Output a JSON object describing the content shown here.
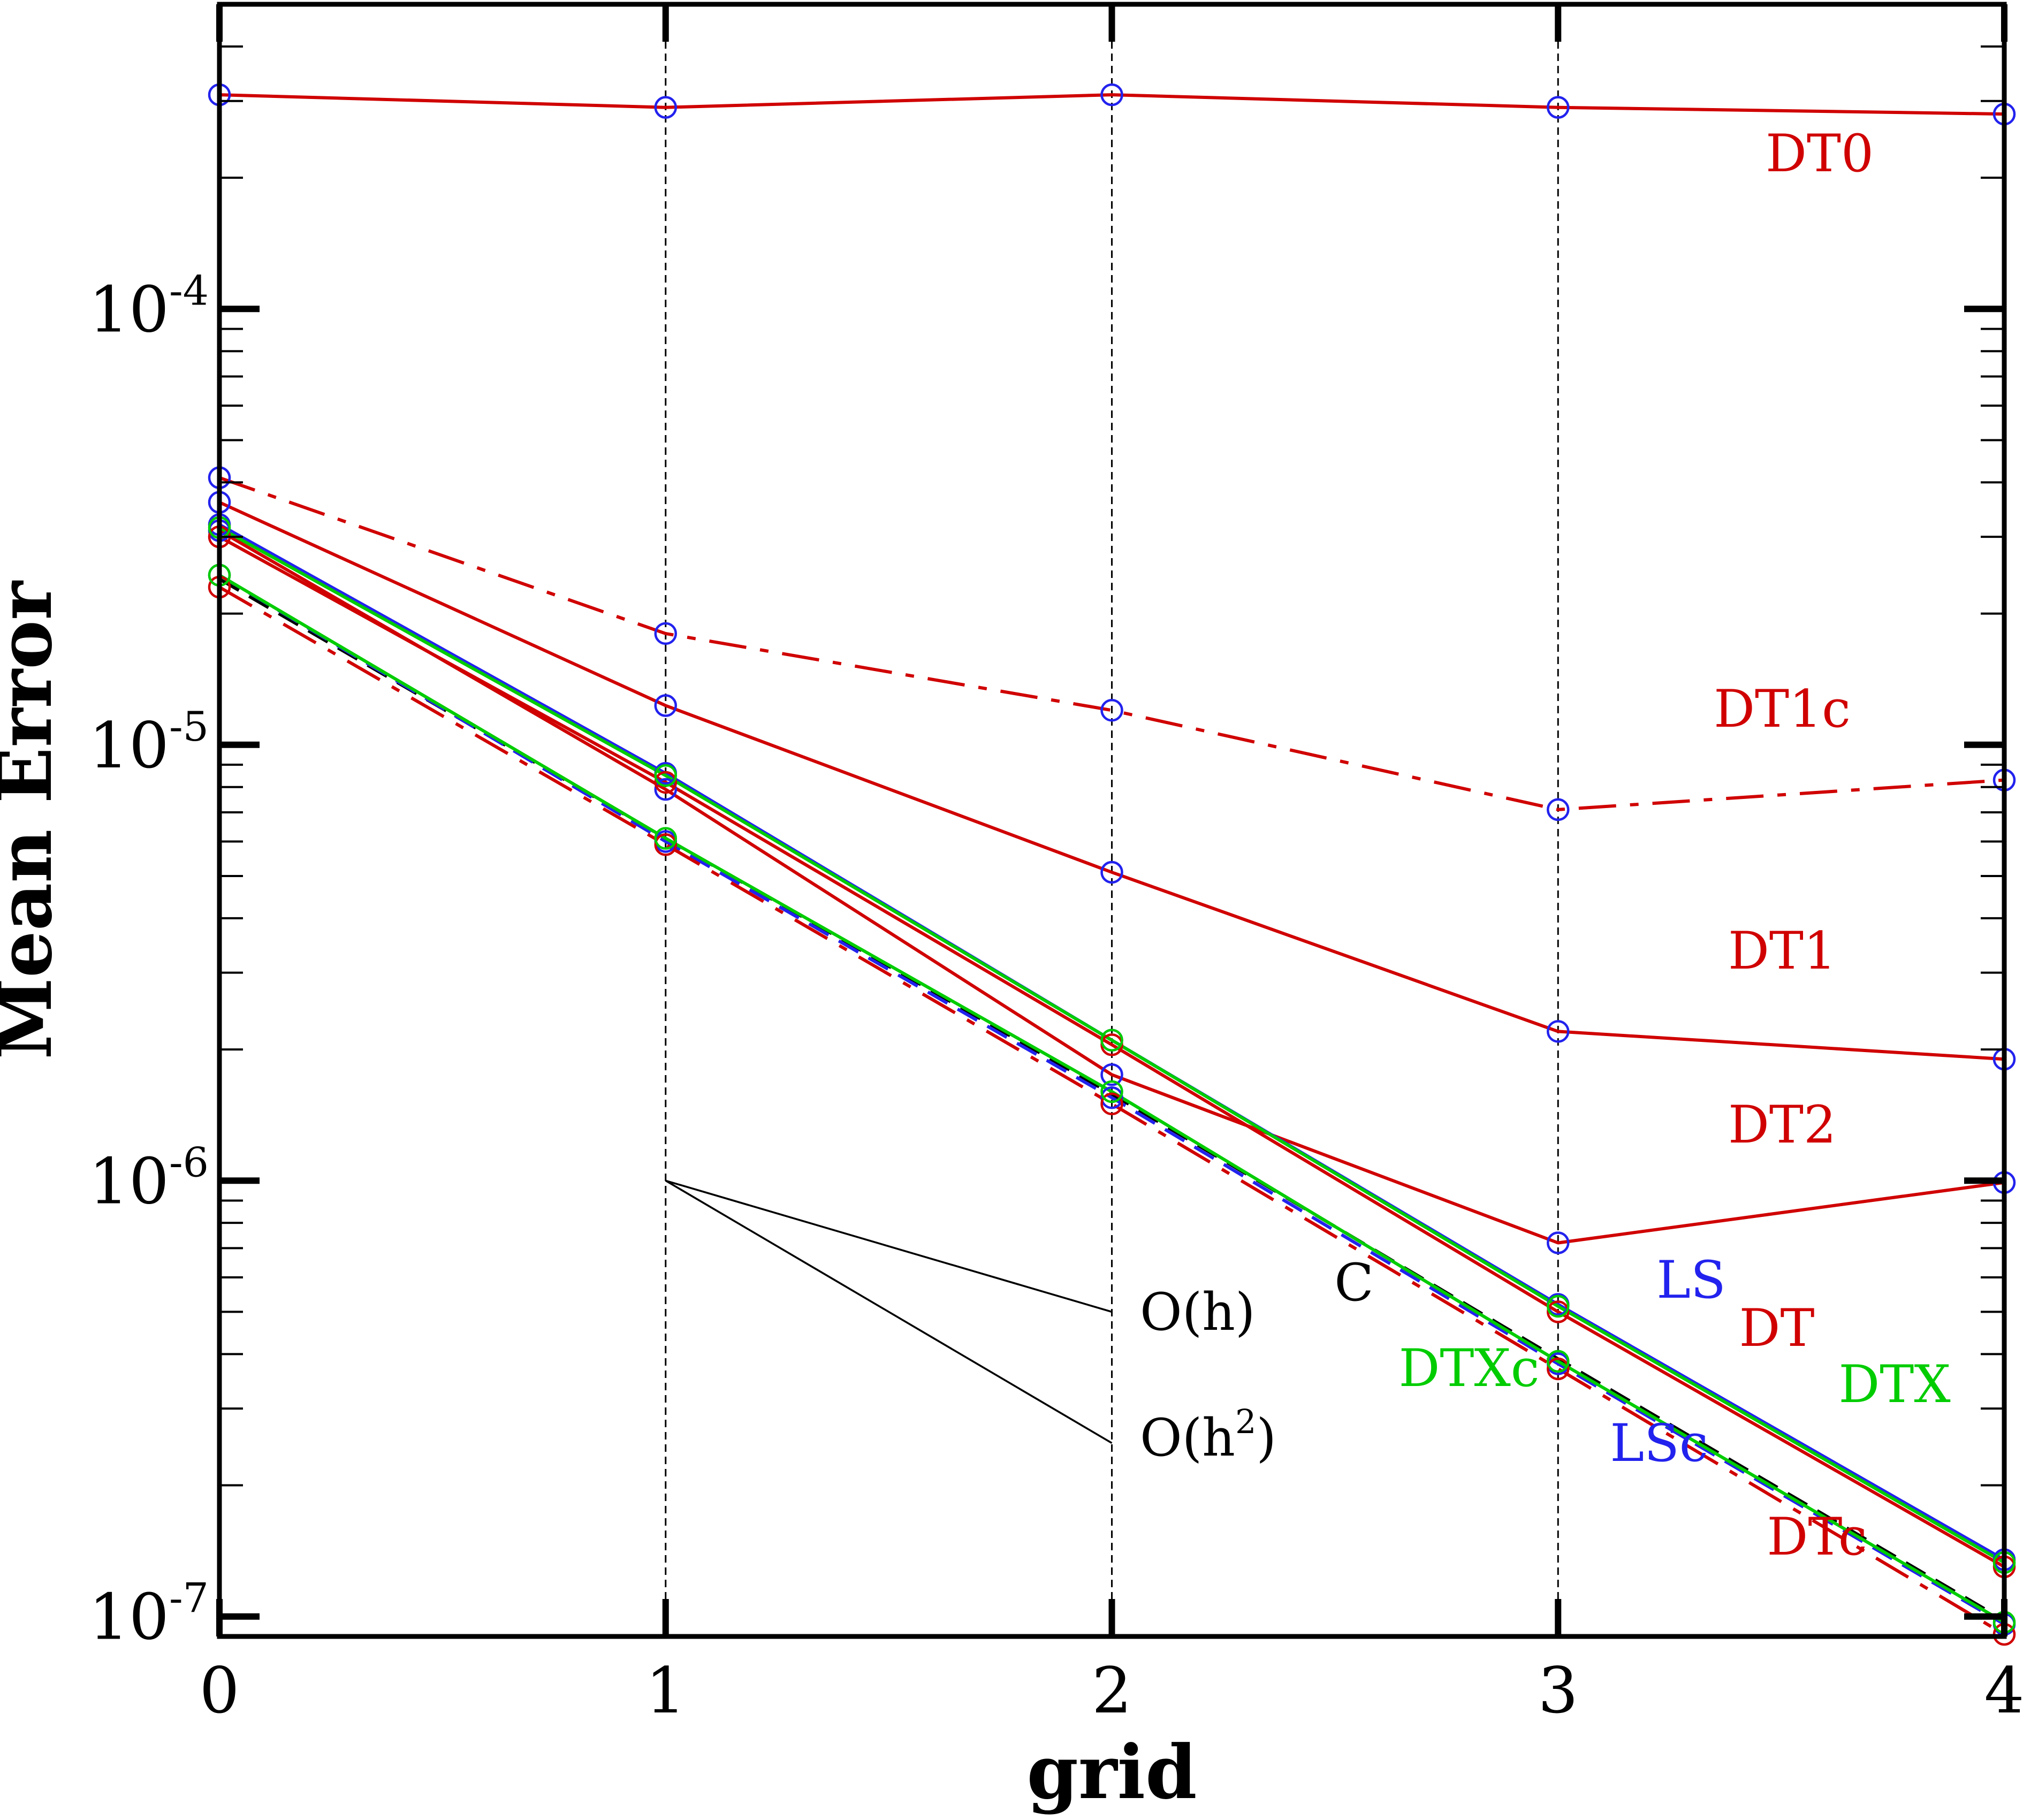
{
  "chart_data": {
    "type": "line",
    "title": "",
    "xlabel": "grid",
    "ylabel": "Mean Error",
    "yscale": "log",
    "xlim": [
      0,
      4
    ],
    "ylim": [
      9e-08,
      0.0005
    ],
    "grid": "vertical dashed lines at x = 1, 2, 3",
    "x": [
      0,
      1,
      2,
      3,
      4
    ],
    "x_tick_labels": [
      "0",
      "1",
      "2",
      "3",
      "4"
    ],
    "y_ticks": [
      {
        "value": 0.0001,
        "base": "10",
        "exponent": "-4"
      },
      {
        "value": 1e-05,
        "base": "10",
        "exponent": "-5"
      },
      {
        "value": 1e-06,
        "base": "10",
        "exponent": "-6"
      },
      {
        "value": 1e-07,
        "base": "10",
        "exponent": "-7"
      }
    ],
    "series": [
      {
        "name": "DT0",
        "label": "DT0",
        "line_color": "#d00000",
        "marker_color": "#2222ee",
        "label_color": "#d00000",
        "dash": "solid",
        "values": [
          0.00031,
          0.00029,
          0.00031,
          0.00029,
          0.00028
        ]
      },
      {
        "name": "DT1c",
        "label": "DT1c",
        "line_color": "#d00000",
        "marker_color": "#2222ee",
        "label_color": "#d00000",
        "dash": "dashdot",
        "values": [
          4.1e-05,
          1.8e-05,
          1.2e-05,
          7.1e-06,
          8.3e-06
        ]
      },
      {
        "name": "DT1",
        "label": "DT1",
        "line_color": "#d00000",
        "marker_color": "#2222ee",
        "label_color": "#d00000",
        "dash": "solid",
        "values": [
          3.6e-05,
          1.23e-05,
          5.1e-06,
          2.2e-06,
          1.9e-06
        ]
      },
      {
        "name": "DT2",
        "label": "DT2",
        "line_color": "#d00000",
        "marker_color": "#2222ee",
        "label_color": "#d00000",
        "dash": "solid",
        "values": [
          3.1e-05,
          7.9e-06,
          1.75e-06,
          7.2e-07,
          9.9e-07
        ]
      },
      {
        "name": "LS",
        "label": "LS",
        "line_color": "#2222ee",
        "marker_color": "#2222ee",
        "label_color": "#2222ee",
        "dash": "solid",
        "values": [
          3.2e-05,
          8.6e-06,
          2.1e-06,
          5.2e-07,
          1.35e-07
        ]
      },
      {
        "name": "DT",
        "label": "DT",
        "line_color": "#d00000",
        "marker_color": "#d00000",
        "label_color": "#d00000",
        "dash": "solid",
        "values": [
          3e-05,
          8.2e-06,
          2.05e-06,
          5e-07,
          1.3e-07
        ]
      },
      {
        "name": "DTX",
        "label": "DTX",
        "line_color": "#00cc00",
        "marker_color": "#00cc00",
        "label_color": "#00cc00",
        "dash": "solid",
        "values": [
          3.15e-05,
          8.5e-06,
          2.1e-06,
          5.15e-07,
          1.33e-07
        ]
      },
      {
        "name": "C",
        "label": "C",
        "line_color": "#000000",
        "marker_color": null,
        "label_color": "#000000",
        "dash": "dash",
        "values": [
          2.4e-05,
          6.1e-06,
          1.58e-06,
          3.9e-07,
          9.8e-08
        ]
      },
      {
        "name": "LSc",
        "label": "LSc",
        "line_color": "#2222ee",
        "marker_color": "#2222ee",
        "label_color": "#2222ee",
        "dash": "dash",
        "values": [
          2.45e-05,
          6e-06,
          1.55e-06,
          3.8e-07,
          9.6e-08
        ]
      },
      {
        "name": "DTc",
        "label": "DTc",
        "line_color": "#d00000",
        "marker_color": "#d00000",
        "label_color": "#d00000",
        "dash": "dashdot",
        "values": [
          2.3e-05,
          5.9e-06,
          1.5e-06,
          3.7e-07,
          9.1e-08
        ]
      },
      {
        "name": "DTXc",
        "label": "DTXc",
        "line_color": "#00cc00",
        "marker_color": "#00cc00",
        "label_color": "#00cc00",
        "dash": "solid",
        "values": [
          2.45e-05,
          6.1e-06,
          1.6e-06,
          3.85e-07,
          9.7e-08
        ]
      }
    ],
    "order_lines": [
      {
        "name": "O(h)",
        "label": "O(h)",
        "x": [
          1,
          2
        ],
        "y": [
          1e-06,
          5e-07
        ]
      },
      {
        "name": "O(h²)",
        "label_base": "O(h",
        "label_sup": "2",
        "label_end": ")",
        "x": [
          1,
          2
        ],
        "y": [
          1e-06,
          2.5e-07
        ]
      }
    ]
  }
}
